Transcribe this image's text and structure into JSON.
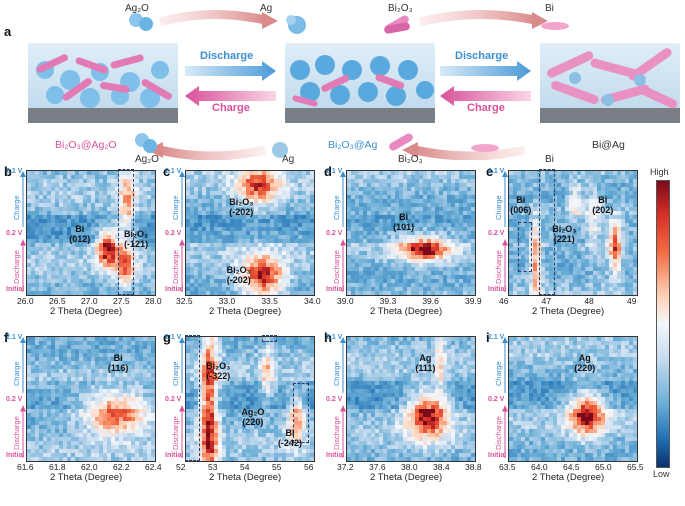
{
  "panel_a": {
    "label": "a",
    "ag2o_top": "Ag₂O",
    "ag_top": "Ag",
    "bi2o3_top": "Bi₂O₃",
    "bi_top": "Bi",
    "discharge1": "Discharge",
    "charge1": "Charge",
    "discharge2": "Discharge",
    "charge2": "Charge",
    "state1": "Bi₂O₃@Ag₂O",
    "state2": "Bi₂O₃@Ag",
    "state3": "Bi@Ag",
    "ag2o_bottom": "Ag₂O",
    "ag_bottom": "Ag",
    "bi2o3_bottom": "Bi₂O₃",
    "bi_bottom": "Bi"
  },
  "axis_common": {
    "y_top": "2.1 V",
    "y_mid": "0.2 V",
    "charge": "Charge",
    "discharge": "Discharge",
    "initial": "Initial",
    "xlabel": "2 Theta (Degree)"
  },
  "colorbar": {
    "high": "High",
    "low": "Low"
  },
  "panels": [
    {
      "label": "b",
      "ticks": [
        "26.0",
        "26.5",
        "27.0",
        "27.5",
        "28.0"
      ],
      "annotations": [
        {
          "text1": "Bi",
          "text2": "(012)"
        },
        {
          "text1": "Bi₂O₃",
          "text2": "(-121)"
        }
      ]
    },
    {
      "label": "c",
      "ticks": [
        "32.5",
        "33.0",
        "33.5",
        "34.0"
      ],
      "annotations": [
        {
          "text1": "Bi₂O₃",
          "text2": "(-202)"
        },
        {
          "text1": "Bi₂O₃",
          "text2": "(-202)"
        }
      ]
    },
    {
      "label": "d",
      "ticks": [
        "39.0",
        "39.3",
        "39.6",
        "39.9"
      ],
      "annotations": [
        {
          "text1": "Bi",
          "text2": "(101)"
        }
      ]
    },
    {
      "label": "e",
      "ticks": [
        "46",
        "47",
        "48",
        "49"
      ],
      "annotations": [
        {
          "text1": "Bi",
          "text2": "(006)"
        },
        {
          "text1": "Bi₂O₃",
          "text2": "(221)"
        },
        {
          "text1": "Bi",
          "text2": "(202)"
        }
      ]
    },
    {
      "label": "f",
      "ticks": [
        "61.6",
        "61.8",
        "62.0",
        "62.2",
        "62.4"
      ],
      "annotations": [
        {
          "text1": "Bi",
          "text2": "(116)"
        }
      ]
    },
    {
      "label": "g",
      "ticks": [
        "52",
        "53",
        "54",
        "55",
        "56"
      ],
      "annotations": [
        {
          "text1": "Bi₂O₃",
          "text2": "(-322)"
        },
        {
          "text1": "Ag₂O",
          "text2": "(220)"
        },
        {
          "text1": "Bi",
          "text2": "(-242)"
        }
      ]
    },
    {
      "label": "h",
      "ticks": [
        "37.2",
        "37.6",
        "38.0",
        "38.4",
        "38.8"
      ],
      "annotations": [
        {
          "text1": "Ag",
          "text2": "(111)"
        }
      ]
    },
    {
      "label": "i",
      "ticks": [
        "63.5",
        "64.0",
        "64.5",
        "65.0",
        "65.5"
      ],
      "annotations": [
        {
          "text1": "Ag",
          "text2": "(220)"
        }
      ]
    }
  ],
  "colors": {
    "accent_pink": "#d9519a",
    "accent_blue": "#3b8fd0"
  }
}
